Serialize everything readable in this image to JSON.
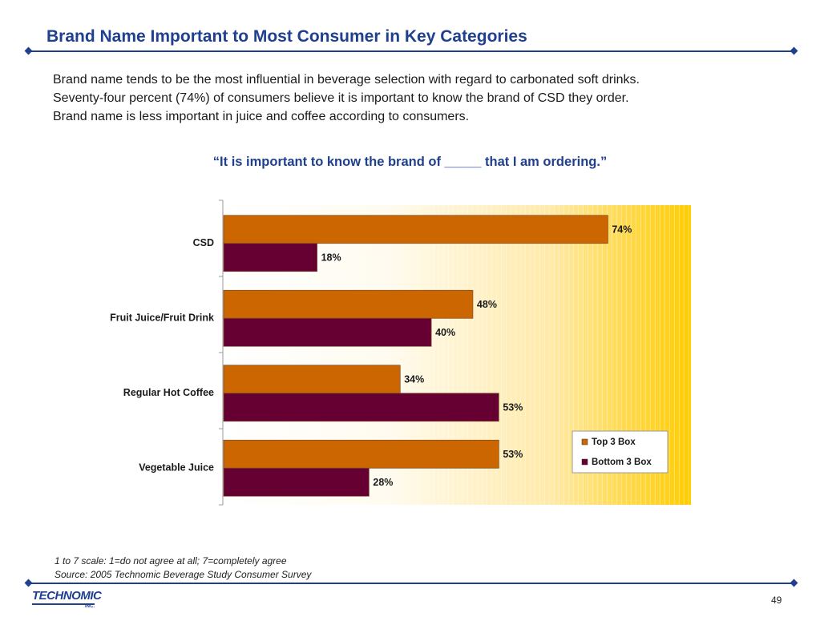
{
  "slide": {
    "title": "Brand Name Important to Most Consumer in Key Categories",
    "body_lines": [
      "Brand name tends to be the most influential in beverage selection with regard to carbonated soft drinks.",
      "Seventy-four percent (74%) of consumers believe it is important to know the brand of CSD they order.",
      "Brand name is less important in juice and coffee according to consumers."
    ],
    "quote": "“It is important to know the brand of _____ that I am ordering.”",
    "footnotes": [
      "1 to 7 scale: 1=do not agree at all; 7=completely agree",
      "Source: 2005 Technomic Beverage Study Consumer Survey"
    ],
    "logo_text": "TECHNOMIC",
    "logo_sub": "INC.",
    "page_number": "49"
  },
  "colors": {
    "title": "#1f3f8f",
    "top3": "#cc6600",
    "bottom3": "#660033",
    "bg_gradient_start": "#fffbf0",
    "bg_gradient_end": "#ffcc00"
  },
  "chart_data": {
    "type": "bar",
    "orientation": "horizontal",
    "categories": [
      "CSD",
      "Fruit Juice/Fruit Drink",
      "Regular Hot Coffee",
      "Vegetable Juice"
    ],
    "series": [
      {
        "name": "Top 3 Box",
        "values": [
          74,
          48,
          34,
          53
        ],
        "labels": [
          "74%",
          "48%",
          "34%",
          "53%"
        ],
        "color": "#cc6600"
      },
      {
        "name": "Bottom 3 Box",
        "values": [
          18,
          40,
          53,
          28
        ],
        "labels": [
          "18%",
          "40%",
          "53%",
          "28%"
        ],
        "color": "#660033"
      }
    ],
    "xlim": [
      0,
      90
    ],
    "grid": false,
    "legend_position": "bottom-right"
  }
}
